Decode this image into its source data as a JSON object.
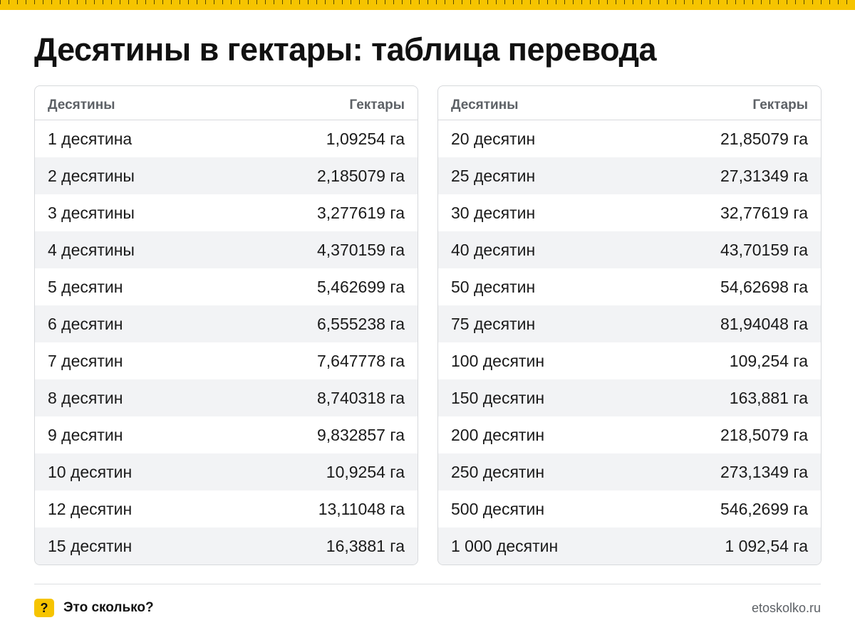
{
  "title": "Десятины в гектары: таблица перевода",
  "columns": {
    "from": "Десятины",
    "to": "Гектары"
  },
  "left_table": [
    {
      "from": "1 десятина",
      "to": "1,09254 га"
    },
    {
      "from": "2 десятины",
      "to": "2,185079 га"
    },
    {
      "from": "3 десятины",
      "to": "3,277619 га"
    },
    {
      "from": "4 десятины",
      "to": "4,370159 га"
    },
    {
      "from": "5 десятин",
      "to": "5,462699 га"
    },
    {
      "from": "6 десятин",
      "to": "6,555238 га"
    },
    {
      "from": "7 десятин",
      "to": "7,647778 га"
    },
    {
      "from": "8 десятин",
      "to": "8,740318 га"
    },
    {
      "from": "9 десятин",
      "to": "9,832857 га"
    },
    {
      "from": "10 десятин",
      "to": "10,9254 га"
    },
    {
      "from": "12 десятин",
      "to": "13,11048 га"
    },
    {
      "from": "15 десятин",
      "to": "16,3881 га"
    }
  ],
  "right_table": [
    {
      "from": "20 десятин",
      "to": "21,85079 га"
    },
    {
      "from": "25 десятин",
      "to": "27,31349 га"
    },
    {
      "from": "30 десятин",
      "to": "32,77619 га"
    },
    {
      "from": "40 десятин",
      "to": "43,70159 га"
    },
    {
      "from": "50 десятин",
      "to": "54,62698 га"
    },
    {
      "from": "75 десятин",
      "to": "81,94048 га"
    },
    {
      "from": "100 десятин",
      "to": "109,254 га"
    },
    {
      "from": "150 десятин",
      "to": "163,881 га"
    },
    {
      "from": "200 десятин",
      "to": "218,5079 га"
    },
    {
      "from": "250 десятин",
      "to": "273,1349 га"
    },
    {
      "from": "500 десятин",
      "to": "546,2699 га"
    },
    {
      "from": "1 000 десятин",
      "to": "1 092,54 га"
    }
  ],
  "footer": {
    "badge": "?",
    "brand": "Это сколько?",
    "site": "etoskolko.ru"
  },
  "colors": {
    "accent": "#f6c400",
    "stripe": "#f2f3f5",
    "header_text": "#5d6166",
    "border": "#d7d9dc"
  },
  "icons": {
    "badge": "question-mark-icon",
    "ruler": "ruler-strip"
  }
}
